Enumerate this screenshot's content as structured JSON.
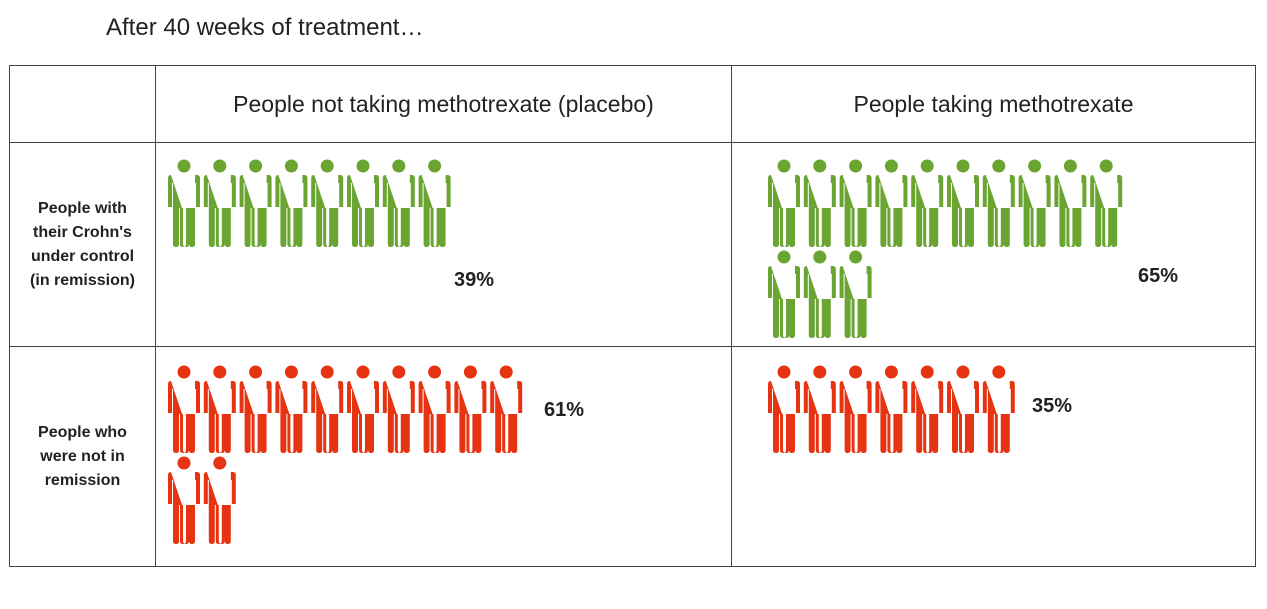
{
  "title": "After 40 weeks of treatment…",
  "chart_data": {
    "type": "pictograph",
    "columns": [
      "People not taking methotrexate (placebo)",
      "People taking methotrexate"
    ],
    "rows": [
      {
        "label": "People with their Crohn's under control (in remission)",
        "color": "#6aa532",
        "counts": [
          8,
          13
        ],
        "percents": [
          "39%",
          "65%"
        ]
      },
      {
        "label": "People who were not in remission",
        "color": "#e63312",
        "counts": [
          12,
          7
        ],
        "percents": [
          "61%",
          "35%"
        ]
      }
    ]
  }
}
